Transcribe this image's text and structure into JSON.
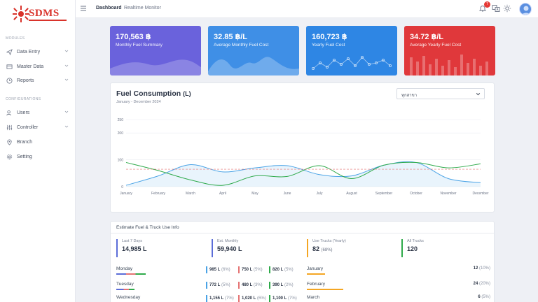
{
  "app": {
    "logo_text": "SDMS"
  },
  "sidebar": {
    "modules_label": "MODULES",
    "configurations_label": "CONFIGURATIONS",
    "items": [
      {
        "label": "Data Entry",
        "icon": "send-icon",
        "has_chevron": true
      },
      {
        "label": "Master Data",
        "icon": "folder-icon",
        "has_chevron": true
      },
      {
        "label": "Reports",
        "icon": "clock-icon",
        "has_chevron": true
      },
      {
        "label": "Users",
        "icon": "users-icon",
        "has_chevron": true
      },
      {
        "label": "Controller",
        "icon": "sliders-icon",
        "has_chevron": true
      },
      {
        "label": "Branch",
        "icon": "pin-icon",
        "has_chevron": false
      },
      {
        "label": "Setting",
        "icon": "gear-icon",
        "has_chevron": false
      }
    ]
  },
  "topbar": {
    "breadcrumb_active": "Dashboard",
    "breadcrumb": "Realtime Monitor",
    "notification_count": "7"
  },
  "cards": [
    {
      "value": "170,563 ฿",
      "label": "Monthly Fuel Summary",
      "color": "#6a62dc"
    },
    {
      "value": "32.85 ฿/L",
      "label": "Average Monthly Fuel Cost",
      "color": "#3f8fe6"
    },
    {
      "value": "160,723 ฿",
      "label": "Yearly Fuel Cost",
      "color": "#2e86e4"
    },
    {
      "value": "34.72 ฿/L",
      "label": "Average Yearly Fuel Cost",
      "color": "#e0383b"
    }
  ],
  "fuel_chart": {
    "title_main": "Fuel Consumption",
    "title_unit": "(L)",
    "subtitle": "January - December 2024",
    "select_value": "ทุกสาขา"
  },
  "chart_data": {
    "type": "line",
    "categories": [
      "January",
      "February",
      "March",
      "April",
      "May",
      "June",
      "July",
      "August",
      "September",
      "October",
      "November",
      "December"
    ],
    "y_ticks": [
      0,
      100,
      200,
      250
    ],
    "ylim": [
      0,
      250
    ],
    "grid": true,
    "series": [
      {
        "values": [
          5,
          40,
          82,
          55,
          70,
          78,
          45,
          40,
          80,
          90,
          30,
          15
        ],
        "color": "#4aa3e6",
        "fill": true
      },
      {
        "values": [
          90,
          60,
          25,
          5,
          40,
          38,
          78,
          30,
          80,
          90,
          70,
          85
        ],
        "color": "#2eaa4a",
        "fill": false
      }
    ],
    "reference_line": {
      "value": 65,
      "color": "#e57373"
    }
  },
  "info": {
    "title": "Estimate Fuel & Truck Use Info",
    "kpis": [
      {
        "label": "Last 7 Days",
        "value": "14,985 L",
        "pct": "",
        "color": "#5b6dd8"
      },
      {
        "label": "Est. Monthly",
        "value": "59,940 L",
        "pct": "",
        "color": "#5b6dd8"
      },
      {
        "label": "Use Trucks (Yearly)",
        "value": "82",
        "pct": "(68%)",
        "color": "#f4a623"
      },
      {
        "label": "All Trucks",
        "value": "120",
        "pct": "",
        "color": "#2eaa4a"
      }
    ],
    "days": [
      {
        "name": "Monday",
        "v1": "985 L",
        "p1": "(6%)",
        "v2": "750 L",
        "p2": "(5%)",
        "v3": "820 L",
        "p3": "(5%)"
      },
      {
        "name": "Tuesday",
        "v1": "772 L",
        "p1": "(5%)",
        "v2": "480 L",
        "p2": "(3%)",
        "v3": "390 L",
        "p3": "(2%)"
      },
      {
        "name": "Wednesday",
        "v1": "1,155 L",
        "p1": "(7%)",
        "v2": "1,020 L",
        "p2": "(6%)",
        "v3": "1,100 L",
        "p3": "(7%)"
      }
    ],
    "months": [
      {
        "name": "January",
        "value": "12",
        "pct": "(10%)",
        "bar": 0.1
      },
      {
        "name": "February",
        "value": "24",
        "pct": "(20%)",
        "bar": 0.2
      },
      {
        "name": "March",
        "value": "6",
        "pct": "(5%)",
        "bar": 0.05
      }
    ]
  }
}
